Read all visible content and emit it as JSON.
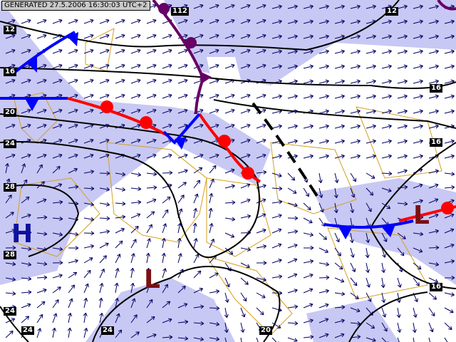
{
  "header": {
    "generated": "GENERATED 27.5.2006 16:30:03 UTC+2"
  },
  "colors": {
    "shade": "#c8c8f4",
    "isobar": "#000000",
    "cold_front": "#0000ff",
    "warm_front": "#ff0000",
    "occluded_front": "#660066",
    "wind": "#000066",
    "border": "#d4a020",
    "high": "#1010a0",
    "low": "#7a1010"
  },
  "isobar_labels": [
    {
      "text": "112",
      "name": "isobar-label-top"
    },
    {
      "text": "12",
      "name": "isobar-label-12-ne"
    },
    {
      "text": "12",
      "name": "isobar-label-12-w"
    },
    {
      "text": "16",
      "name": "isobar-label-16-w"
    },
    {
      "text": "20",
      "name": "isobar-label-20-w"
    },
    {
      "text": "24",
      "name": "isobar-label-24-w"
    },
    {
      "text": "28",
      "name": "isobar-label-28-w"
    },
    {
      "text": "28",
      "name": "isobar-label-28-sw"
    },
    {
      "text": "24",
      "name": "isobar-label-24-sw"
    },
    {
      "text": "24",
      "name": "isobar-label-24-s1"
    },
    {
      "text": "24",
      "name": "isobar-label-24-s2"
    },
    {
      "text": "20",
      "name": "isobar-label-20-s"
    },
    {
      "text": "16",
      "name": "isobar-label-16-e1"
    },
    {
      "text": "16",
      "name": "isobar-label-16-e2"
    },
    {
      "text": "16",
      "name": "isobar-label-16-e3"
    }
  ],
  "pressure_systems": [
    {
      "text": "H",
      "type": "high"
    },
    {
      "text": "L",
      "type": "low"
    },
    {
      "text": "L",
      "type": "low"
    }
  ]
}
